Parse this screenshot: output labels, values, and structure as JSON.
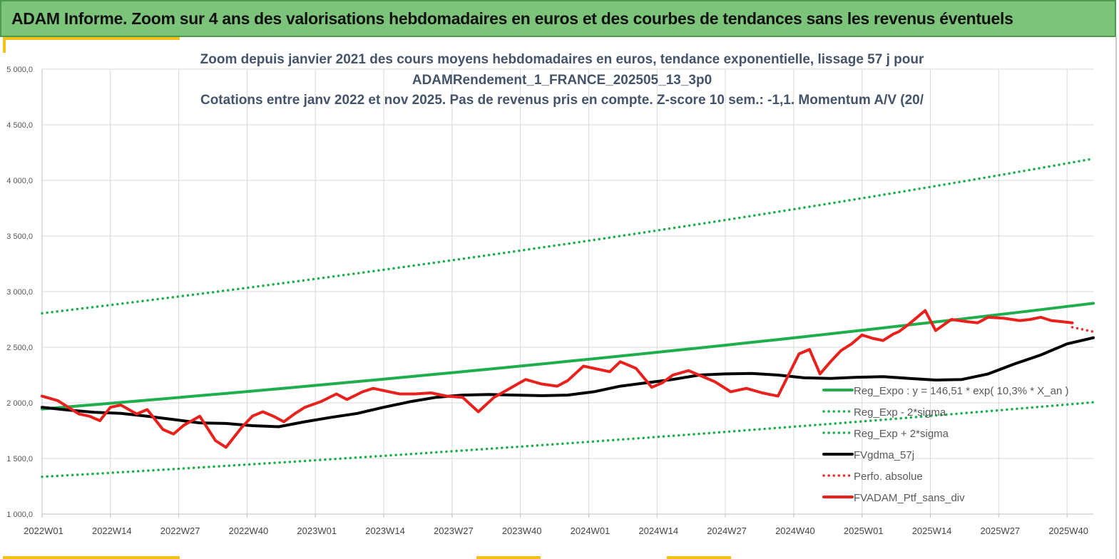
{
  "banner": {
    "title": "ADAM Informe. Zoom sur 4 ans des valorisations hebdomadaires en euros et des courbes de tendances sans les revenus éventuels"
  },
  "chart_data": {
    "type": "line",
    "title_lines": [
      "Zoom depuis janvier 2021 des cours moyens hebdomadaires  en euros, tendance exponentielle, lissage 57 j pour",
      "ADAMRendement_1_FRANCE_202505_13_3p0",
      "Cotations entre janv 2022 et nov 2025. Pas de revenus pris en compte. Z-score 10 sem.: -1,1. Momentum A/V (20/"
    ],
    "xlabel": "",
    "ylabel": "",
    "ylim": [
      1000,
      5000
    ],
    "yticks": [
      1000,
      1500,
      2000,
      2500,
      3000,
      3500,
      4000,
      4500,
      5000
    ],
    "ytick_labels": [
      "1 000,0",
      "1 500,0",
      "2 000,0",
      "2 500,0",
      "3 000,0",
      "3 500,0",
      "4 000,0",
      "4 500,0",
      "5 000,0"
    ],
    "xlim": [
      0,
      200
    ],
    "xticks": [
      0,
      13,
      26,
      39,
      52,
      65,
      78,
      91,
      104,
      117,
      130,
      143,
      156,
      169,
      182,
      195
    ],
    "xtick_labels": [
      "2022W01",
      "2022W14",
      "2022W27",
      "2022W40",
      "2023W01",
      "2023W14",
      "2023W27",
      "2023W40",
      "2024W01",
      "2024W14",
      "2024W27",
      "2024W40",
      "2025W01",
      "2025W14",
      "2025W27",
      "2025W40"
    ],
    "grid": true,
    "series": [
      {
        "name": "Reg_Expo : y = 146,51 * exp( 10,3% *  X_an )",
        "style": "solid-thick",
        "color": "#1fae4e",
        "x": [
          0,
          200
        ],
        "y": [
          1945,
          2895
        ],
        "curve": "exponential"
      },
      {
        "name": "Reg_Exp - 2*sigma",
        "style": "dotted",
        "color": "#1fae4e",
        "x": [
          0,
          200
        ],
        "y": [
          1335,
          2005
        ],
        "curve": "exponential"
      },
      {
        "name": "Reg_Exp + 2*sigma",
        "style": "dotted",
        "color": "#1fae4e",
        "x": [
          0,
          200
        ],
        "y": [
          2805,
          4195
        ],
        "curve": "exponential"
      },
      {
        "name": "FVgdma_57j",
        "style": "solid-thick",
        "color": "#000000",
        "x": [
          0,
          5,
          10,
          15,
          20,
          25,
          30,
          35,
          40,
          45,
          50,
          55,
          60,
          65,
          70,
          75,
          80,
          85,
          90,
          95,
          100,
          105,
          110,
          115,
          120,
          125,
          130,
          135,
          140,
          145,
          150,
          155,
          160,
          165,
          170,
          175,
          180,
          185,
          190,
          195,
          200
        ],
        "y": [
          1960,
          1935,
          1915,
          1905,
          1880,
          1850,
          1820,
          1815,
          1795,
          1785,
          1830,
          1870,
          1905,
          1960,
          2010,
          2050,
          2070,
          2075,
          2070,
          2065,
          2070,
          2100,
          2150,
          2180,
          2210,
          2250,
          2260,
          2265,
          2250,
          2225,
          2220,
          2230,
          2235,
          2220,
          2205,
          2210,
          2260,
          2350,
          2430,
          2530,
          2585
        ]
      },
      {
        "name": "Perfo. absolue",
        "style": "dotted",
        "color": "#e8312f",
        "x": [
          196,
          200
        ],
        "y": [
          2680,
          2640
        ]
      },
      {
        "name": "FVADAM_Ptf_sans_div",
        "style": "solid-thick",
        "color": "#e8211c",
        "x": [
          0,
          3,
          5,
          7,
          9,
          11,
          13,
          15,
          18,
          20,
          23,
          25,
          27,
          30,
          33,
          35,
          38,
          40,
          42,
          44,
          46,
          48,
          50,
          53,
          56,
          58,
          61,
          63,
          65,
          68,
          71,
          74,
          77,
          80,
          83,
          86,
          89,
          92,
          95,
          98,
          100,
          103,
          106,
          108,
          110,
          113,
          116,
          118,
          120,
          123,
          126,
          128,
          131,
          134,
          137,
          140,
          142,
          144,
          146,
          148,
          150,
          152,
          154,
          156,
          158,
          160,
          162,
          163,
          165,
          168,
          170,
          173,
          176,
          178,
          180,
          183,
          186,
          188,
          190,
          192,
          194,
          196
        ],
        "y": [
          2060,
          2020,
          1960,
          1900,
          1880,
          1840,
          1960,
          1980,
          1900,
          1940,
          1760,
          1720,
          1800,
          1880,
          1660,
          1600,
          1780,
          1880,
          1920,
          1880,
          1830,
          1900,
          1960,
          2010,
          2080,
          2030,
          2100,
          2130,
          2110,
          2080,
          2080,
          2090,
          2060,
          2050,
          1920,
          2050,
          2130,
          2210,
          2170,
          2150,
          2200,
          2330,
          2300,
          2280,
          2370,
          2310,
          2140,
          2180,
          2250,
          2290,
          2230,
          2190,
          2100,
          2130,
          2090,
          2060,
          2250,
          2440,
          2480,
          2260,
          2370,
          2470,
          2530,
          2610,
          2580,
          2560,
          2620,
          2640,
          2710,
          2830,
          2650,
          2750,
          2730,
          2720,
          2770,
          2760,
          2740,
          2750,
          2770,
          2740,
          2730,
          2720
        ]
      }
    ]
  }
}
